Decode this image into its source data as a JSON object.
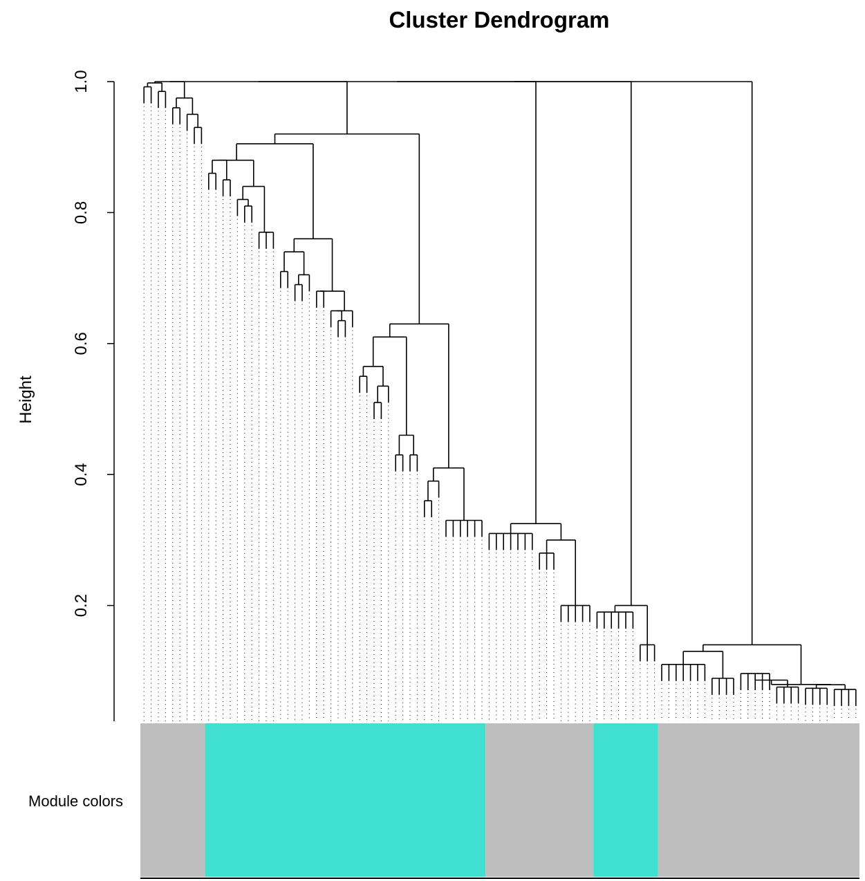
{
  "chart_data": {
    "type": "dendrogram",
    "title": "Cluster Dendrogram",
    "ylabel": "Height",
    "y_ticks": [
      {
        "value": 0.2,
        "label": "0.2"
      },
      {
        "value": 0.4,
        "label": "0.4"
      },
      {
        "value": 0.6,
        "label": "0.6"
      },
      {
        "value": 0.8,
        "label": "0.8"
      },
      {
        "value": 1.0,
        "label": "1.0"
      }
    ],
    "ylim": [
      0.03,
      1.0
    ],
    "leaf_count": 100,
    "color_bar_label": "Module colors",
    "colors": {
      "grey": "#bebebe",
      "turquoise": "#40e0d0"
    },
    "module_colors": [
      {
        "module": "grey",
        "start_leaf": 0,
        "end_leaf": 9
      },
      {
        "module": "turquoise",
        "start_leaf": 9,
        "end_leaf": 48
      },
      {
        "module": "grey",
        "start_leaf": 48,
        "end_leaf": 63
      },
      {
        "module": "turquoise",
        "start_leaf": 63,
        "end_leaf": 72
      },
      {
        "module": "grey",
        "start_leaf": 72,
        "end_leaf": 100
      }
    ],
    "merge_heights": [
      1.0,
      0.998,
      0.992,
      0.985,
      0.975,
      0.96,
      0.95,
      0.93,
      0.92,
      0.905,
      0.88,
      0.88,
      0.86,
      0.85,
      0.84,
      0.82,
      0.81,
      0.77,
      0.77,
      0.76,
      0.74,
      0.71,
      0.705,
      0.69,
      0.68,
      0.68,
      0.65,
      0.65,
      0.635,
      0.63,
      0.61,
      0.565,
      0.55,
      0.535,
      0.51,
      0.46,
      0.43,
      0.43,
      0.41,
      0.39,
      0.36,
      0.33,
      0.325,
      0.31,
      0.3,
      0.28,
      0.2,
      0.2,
      0.19,
      0.14,
      0.14,
      0.13,
      0.11
    ]
  }
}
